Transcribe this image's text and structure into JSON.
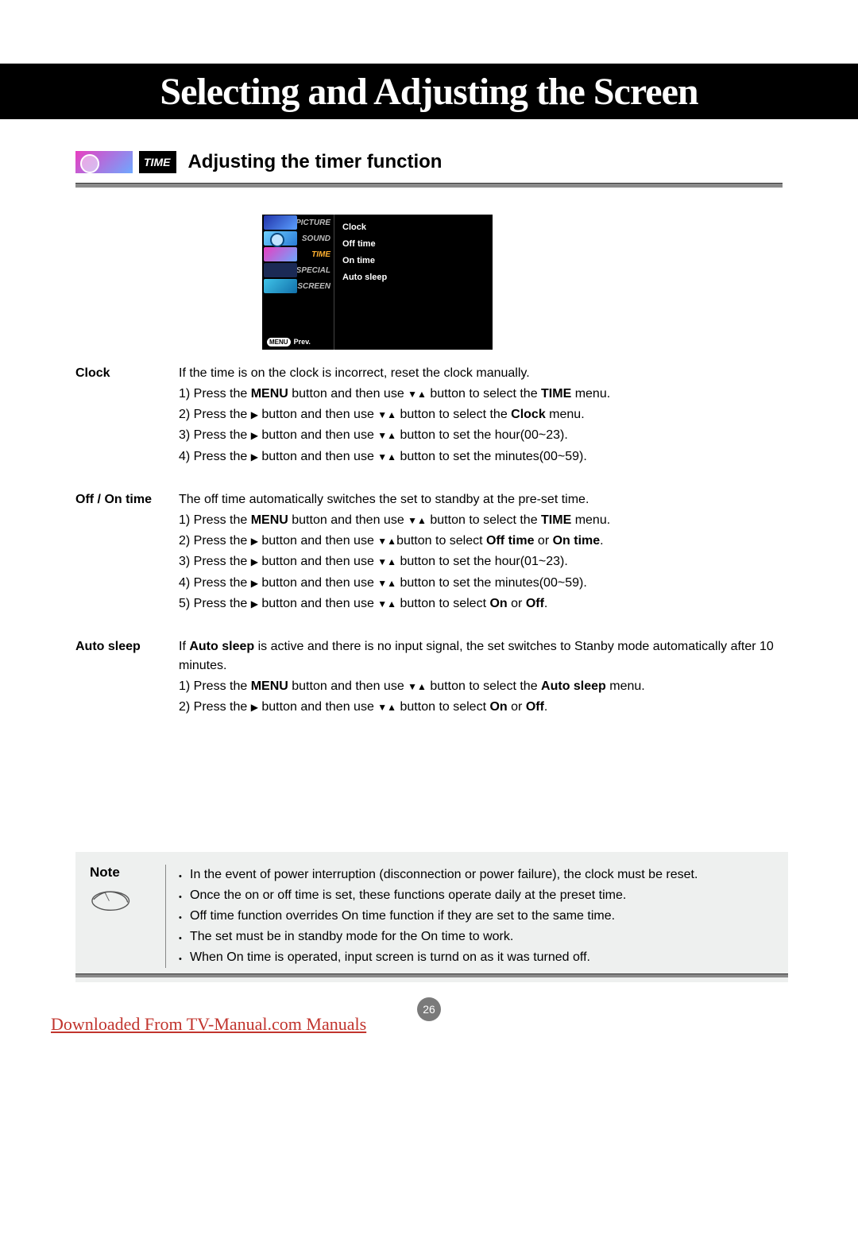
{
  "header": {
    "title": "Selecting and Adjusting the Screen"
  },
  "section": {
    "badge": "TIME",
    "title": "Adjusting the timer function"
  },
  "osd": {
    "tabs": [
      {
        "label": "PICTURE",
        "icon": "ic-picture"
      },
      {
        "label": "SOUND",
        "icon": "ic-sound"
      },
      {
        "label": "TIME",
        "icon": "ic-time",
        "active": true
      },
      {
        "label": "SPECIAL",
        "icon": "ic-special"
      },
      {
        "label": "SCREEN",
        "icon": "ic-screen"
      }
    ],
    "menu_pill": "MENU",
    "prev": "Prev.",
    "items": [
      "Clock",
      "Off time",
      "On time",
      "Auto sleep"
    ]
  },
  "blocks": {
    "clock": {
      "label": "Clock",
      "intro": "If the time is on the clock is incorrect, reset the clock manually.",
      "steps": [
        {
          "pre": "1) Press the ",
          "b1": "MENU",
          "mid1": " button and then use ",
          "arrows": "du",
          "mid2": " button to select the ",
          "b2": "TIME",
          "post": " menu."
        },
        {
          "pre": "2) Press the ",
          "arrows0": "r",
          "mid1": " button and then use ",
          "arrows": "du",
          "mid2": " button to select the ",
          "b2": "Clock",
          "post": " menu."
        },
        {
          "pre": "3) Press the ",
          "arrows0": "r",
          "mid1": "  button and then use ",
          "arrows": "du",
          "mid2": "  button to set the hour(00~23).",
          "post": ""
        },
        {
          "pre": "4) Press the ",
          "arrows0": "r",
          "mid1": "  button and then use ",
          "arrows": "du",
          "mid2": "  button to set the minutes(00~59).",
          "post": ""
        }
      ]
    },
    "offon": {
      "label": "Off / On time",
      "intro": "The off time automatically switches the set to standby at the pre-set time.",
      "steps": [
        {
          "pre": "1) Press the ",
          "b1": "MENU",
          "mid1": " button and then use  ",
          "arrows": "du",
          "mid2": "  button to select the ",
          "b2": "TIME",
          "post": " menu."
        },
        {
          "pre": "2) Press the ",
          "arrows0": "r",
          "mid1": " button and then use  ",
          "arrows": "du",
          "mid2": "button to select ",
          "b2": "Off time",
          "mid3": " or ",
          "b3": "On time",
          "post": "."
        },
        {
          "pre": "3) Press the ",
          "arrows0": "r",
          "mid1": " button and then use  ",
          "arrows": "du",
          "mid2": " button to set the hour(01~23).",
          "post": ""
        },
        {
          "pre": "4) Press the ",
          "arrows0": "r",
          "mid1": " button and then use  ",
          "arrows": "du",
          "mid2": " button to set the minutes(00~59).",
          "post": ""
        },
        {
          "pre": "5) Press the  ",
          "arrows0": "r",
          "mid1": " button and then use  ",
          "arrows": "du",
          "mid2": " button to select ",
          "b2": "On",
          "mid3": " or ",
          "b3": "Off",
          "post": "."
        }
      ]
    },
    "autosleep": {
      "label": "Auto sleep",
      "intro_pre": "If ",
      "intro_b": "Auto sleep",
      "intro_post": " is active and there is no input signal, the set switches to Stanby mode automatically after 10 minutes.",
      "steps": [
        {
          "pre": "1) Press the ",
          "b1": "MENU",
          "mid1": " button and then use ",
          "arrows": "du",
          "mid2": " button to select the ",
          "b2": "Auto sleep",
          "post": " menu."
        },
        {
          "pre": "2) Press the  ",
          "arrows0": "r",
          "mid1": " button and then use ",
          "arrows": "du",
          "mid2": " button to select ",
          "b2": "On",
          "mid3": " or ",
          "b3": "Off",
          "post": "."
        }
      ]
    }
  },
  "note": {
    "title": "Note",
    "items": [
      "In the event of power interruption (disconnection or power failure), the clock must be reset.",
      "Once the on or off time is set, these functions operate daily at the preset time.",
      "Off time function overrides On time function if they are set to the same time.",
      "The set must be in standby mode for the On time to work.",
      "When On time is operated, input screen is turnd on as it was turned off."
    ]
  },
  "page_number": "26",
  "footer_link": "Downloaded From TV-Manual.com Manuals",
  "colors": {
    "black": "#000000",
    "grey_bar": "#8a8a8a",
    "note_bg": "#eef0ef",
    "link": "#c1342d",
    "active_tab": "#ffb030"
  }
}
